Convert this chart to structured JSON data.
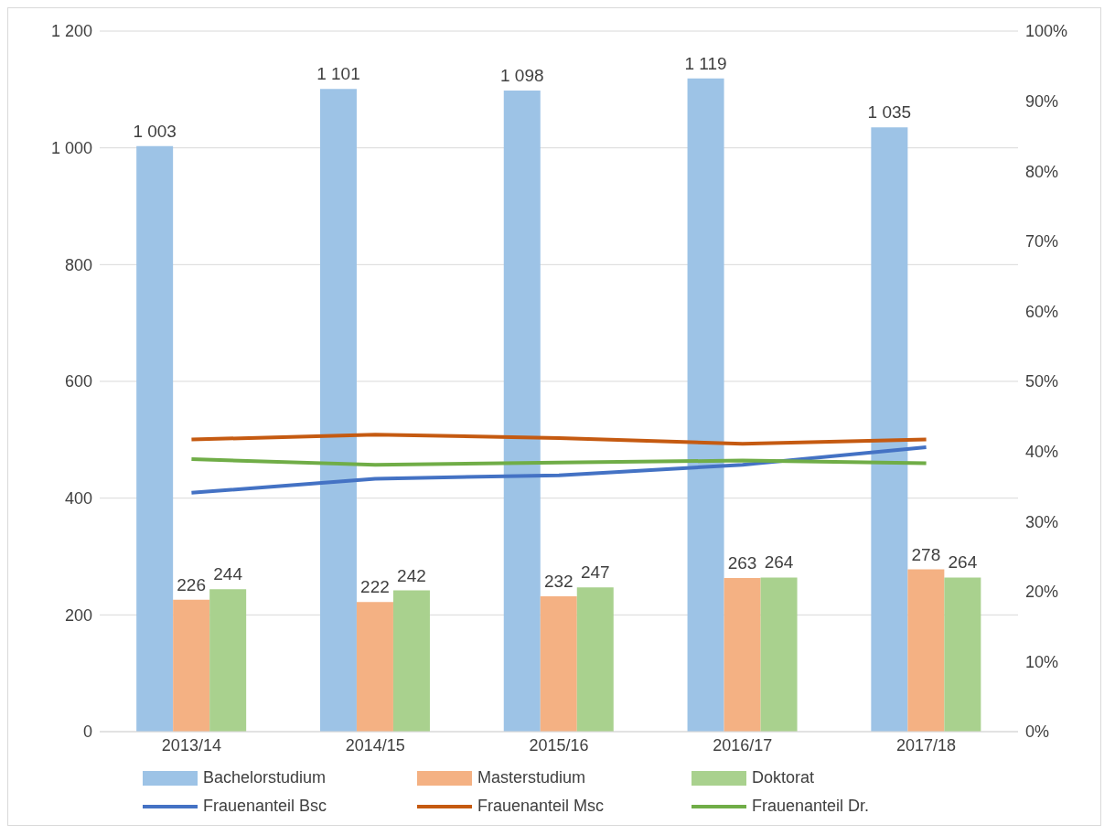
{
  "chart_data": {
    "type": "bar",
    "categories": [
      "2013/14",
      "2014/15",
      "2015/16",
      "2016/17",
      "2017/18"
    ],
    "series": [
      {
        "name": "Bachelorstudium",
        "color": "#9dc3e6",
        "values": [
          1003,
          1101,
          1098,
          1119,
          1035
        ],
        "value_labels": [
          "1 003",
          "1 101",
          "1 098",
          "1 119",
          "1 035"
        ]
      },
      {
        "name": "Masterstudium",
        "color": "#f4b183",
        "values": [
          226,
          222,
          232,
          263,
          278
        ],
        "value_labels": [
          "226",
          "222",
          "232",
          "263",
          "278"
        ]
      },
      {
        "name": "Doktorat",
        "color": "#a9d18e",
        "values": [
          244,
          242,
          247,
          264,
          264
        ],
        "value_labels": [
          "244",
          "242",
          "247",
          "264",
          "264"
        ]
      },
      {
        "name": "Frauenanteil Bsc",
        "type": "line",
        "axis": "y2",
        "color": "#4472c4",
        "values": [
          34.1,
          36.1,
          36.6,
          38.1,
          40.6
        ]
      },
      {
        "name": "Frauenanteil Msc",
        "type": "line",
        "axis": "y2",
        "color": "#c55a11",
        "values": [
          41.7,
          42.4,
          41.9,
          41.1,
          41.7
        ]
      },
      {
        "name": "Frauenanteil Dr.",
        "type": "line",
        "axis": "y2",
        "color": "#70ad47",
        "values": [
          38.9,
          38.1,
          38.4,
          38.7,
          38.3
        ]
      }
    ],
    "ylim": [
      0,
      1200
    ],
    "yticks": [
      0,
      200,
      400,
      600,
      800,
      {
        "value": 1000,
        "label": "1 000"
      },
      {
        "value": 1200,
        "label": "1 200"
      }
    ],
    "y2lim": [
      0,
      100
    ],
    "y2ticks": [
      {
        "value": 0,
        "label": "0%"
      },
      {
        "value": 10,
        "label": "10%"
      },
      {
        "value": 20,
        "label": "20%"
      },
      {
        "value": 30,
        "label": "30%"
      },
      {
        "value": 40,
        "label": "40%"
      },
      {
        "value": 50,
        "label": "50%"
      },
      {
        "value": 60,
        "label": "60%"
      },
      {
        "value": 70,
        "label": "70%"
      },
      {
        "value": 80,
        "label": "80%"
      },
      {
        "value": 90,
        "label": "90%"
      },
      {
        "value": 100,
        "label": "100%"
      }
    ],
    "grid": "y",
    "legend": "bottom",
    "marker": "none",
    "line_style": "solid"
  }
}
